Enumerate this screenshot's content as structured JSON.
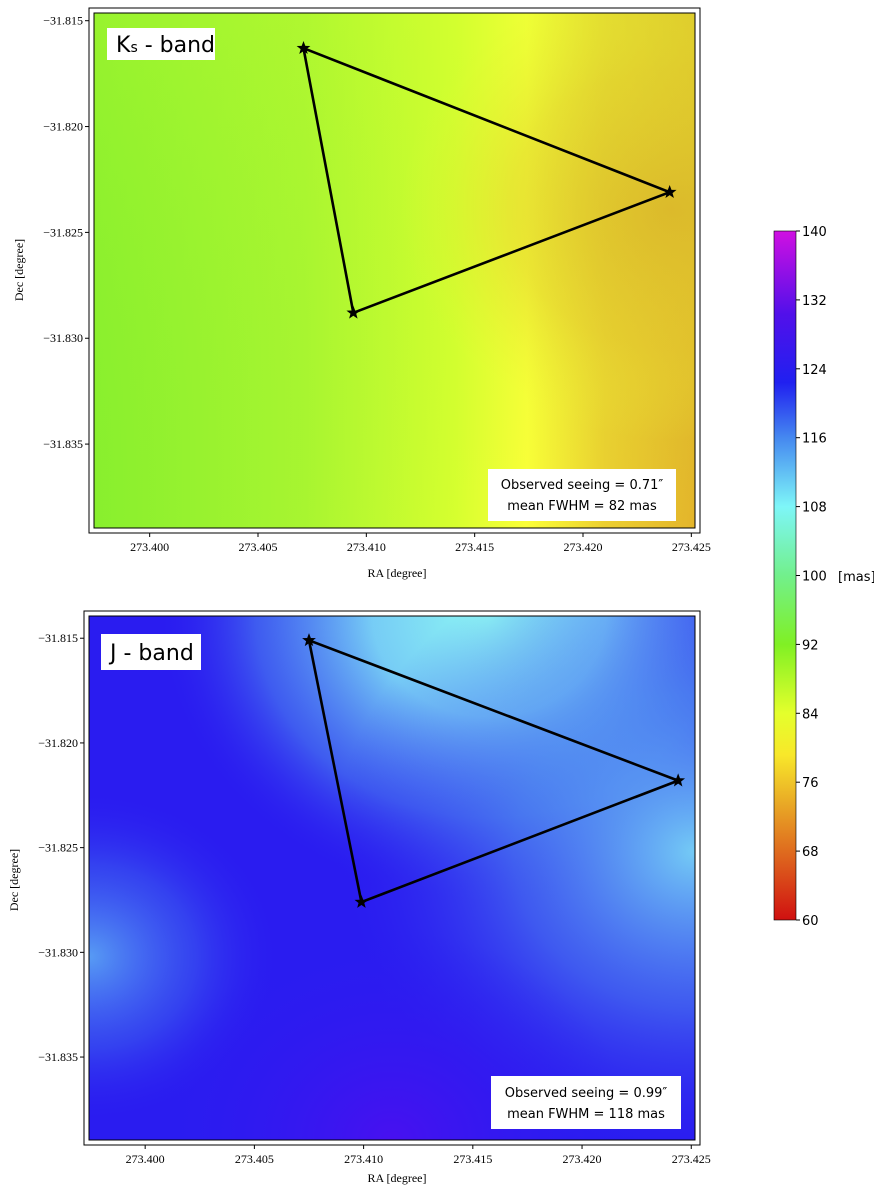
{
  "chart_data": [
    {
      "type": "heatmap",
      "panel_label_main": "K",
      "panel_label_sub": "s",
      "panel_label_rest": " - band",
      "note_line1": "Observed seeing = 0.71″",
      "note_line2": "mean FWHM = 82 mas",
      "xlabel": "RA [degree]",
      "ylabel": "Dec [degree]",
      "x_ticks": [
        "273.400",
        "273.405",
        "273.410",
        "273.415",
        "273.420",
        "273.425"
      ],
      "y_ticks": [
        "−31.815",
        "−31.820",
        "−31.825",
        "−31.830",
        "−31.835"
      ],
      "x_tick_values": [
        273.4,
        273.405,
        273.41,
        273.415,
        273.42,
        273.425
      ],
      "y_tick_values": [
        -31.815,
        -31.82,
        -31.825,
        -31.83,
        -31.835
      ],
      "xlim": [
        273.3972,
        273.4254
      ],
      "ylim": [
        -31.8392,
        -31.8144
      ],
      "triangle": [
        {
          "ra": 273.4071,
          "dec": -31.8163
        },
        {
          "ra": 273.424,
          "dec": -31.8231
        },
        {
          "ra": 273.4094,
          "dec": -31.8288
        }
      ],
      "field_colors": {
        "left": "#8ef02f",
        "mid": "#d6ff2e",
        "ridge": "#fbff38",
        "right": "#e4b82c"
      }
    },
    {
      "type": "heatmap",
      "panel_label_main": "J",
      "panel_label_sub": "",
      "panel_label_rest": " - band",
      "note_line1": "Observed seeing = 0.99″",
      "note_line2": "mean FWHM = 118 mas",
      "xlabel": "RA [degree]",
      "ylabel": "Dec [degree]",
      "x_ticks": [
        "273.400",
        "273.405",
        "273.410",
        "273.415",
        "273.420",
        "273.425"
      ],
      "y_ticks": [
        "−31.815",
        "−31.820",
        "−31.825",
        "−31.830",
        "−31.835"
      ],
      "x_tick_values": [
        273.4,
        273.405,
        273.41,
        273.415,
        273.42,
        273.425
      ],
      "y_tick_values": [
        -31.815,
        -31.82,
        -31.825,
        -31.83,
        -31.835
      ],
      "xlim": [
        273.3972,
        273.4254
      ],
      "ylim": [
        -31.8392,
        -31.8137
      ],
      "triangle": [
        {
          "ra": 273.4075,
          "dec": -31.8151
        },
        {
          "ra": 273.4244,
          "dec": -31.8218
        },
        {
          "ra": 273.4099,
          "dec": -31.8276
        }
      ],
      "field_colors": {
        "base": "#2a1cf0",
        "cyan": "#8ff7f5",
        "light": "#5fa6f5",
        "violet": "#4a10f0"
      }
    }
  ],
  "colorbar": {
    "unit": "[mas]",
    "min": 60,
    "max": 140,
    "ticks": [
      "140",
      "132",
      "124",
      "116",
      "108",
      "100",
      "92",
      "84",
      "76",
      "68",
      "60"
    ],
    "tick_values": [
      140,
      132,
      124,
      116,
      108,
      100,
      92,
      84,
      76,
      68,
      60
    ],
    "colors": [
      "#d01010",
      "#e07020",
      "#f5e020",
      "#e8ff2a",
      "#7ff022",
      "#74f08a",
      "#7ef8f8",
      "#3f80f0",
      "#2020f0",
      "#6010e8",
      "#d010e0"
    ]
  }
}
